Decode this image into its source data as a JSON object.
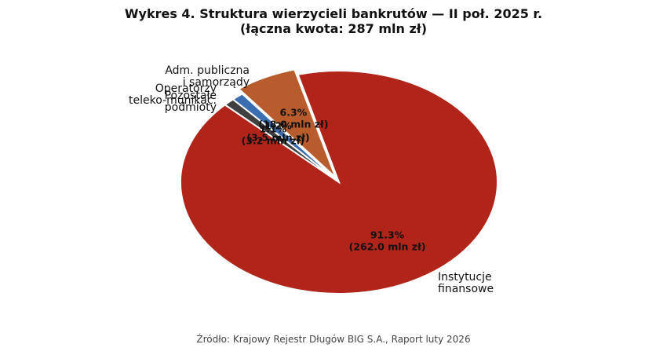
{
  "chart_data": {
    "type": "pie",
    "title_line1": "Wykres 4. Struktura wierzycieli bankrutów — II poł. 2025 r.",
    "title_line2": "(łączna kwota: 287 mln zł)",
    "source": "Źródło: Krajowy Rejestr Długów BIG S.A., Raport luty 2026",
    "slices": [
      {
        "label_lines": [
          "Instytucje",
          "finansowe"
        ],
        "percent": "91.3%",
        "amount": "(262.0 mln zł)",
        "value": 262.0,
        "color": "#b0241a"
      },
      {
        "label_lines": [
          "Pozostałe",
          "podmioty"
        ],
        "percent": "1.1%",
        "amount": "(3.2 mln zł)",
        "value": 3.2,
        "color": "#404040"
      },
      {
        "label_lines": [
          "Operatorzy",
          "teleko-munikac."
        ],
        "percent": "1.2%",
        "amount": "(3.5 mln zł)",
        "value": 3.5,
        "color": "#3b6eb1"
      },
      {
        "label_lines": [
          "Adm. publiczna",
          "i samorządy"
        ],
        "percent": "6.3%",
        "amount": "(18.0 mln zł)",
        "value": 18.0,
        "color": "#b85c2e"
      }
    ]
  }
}
